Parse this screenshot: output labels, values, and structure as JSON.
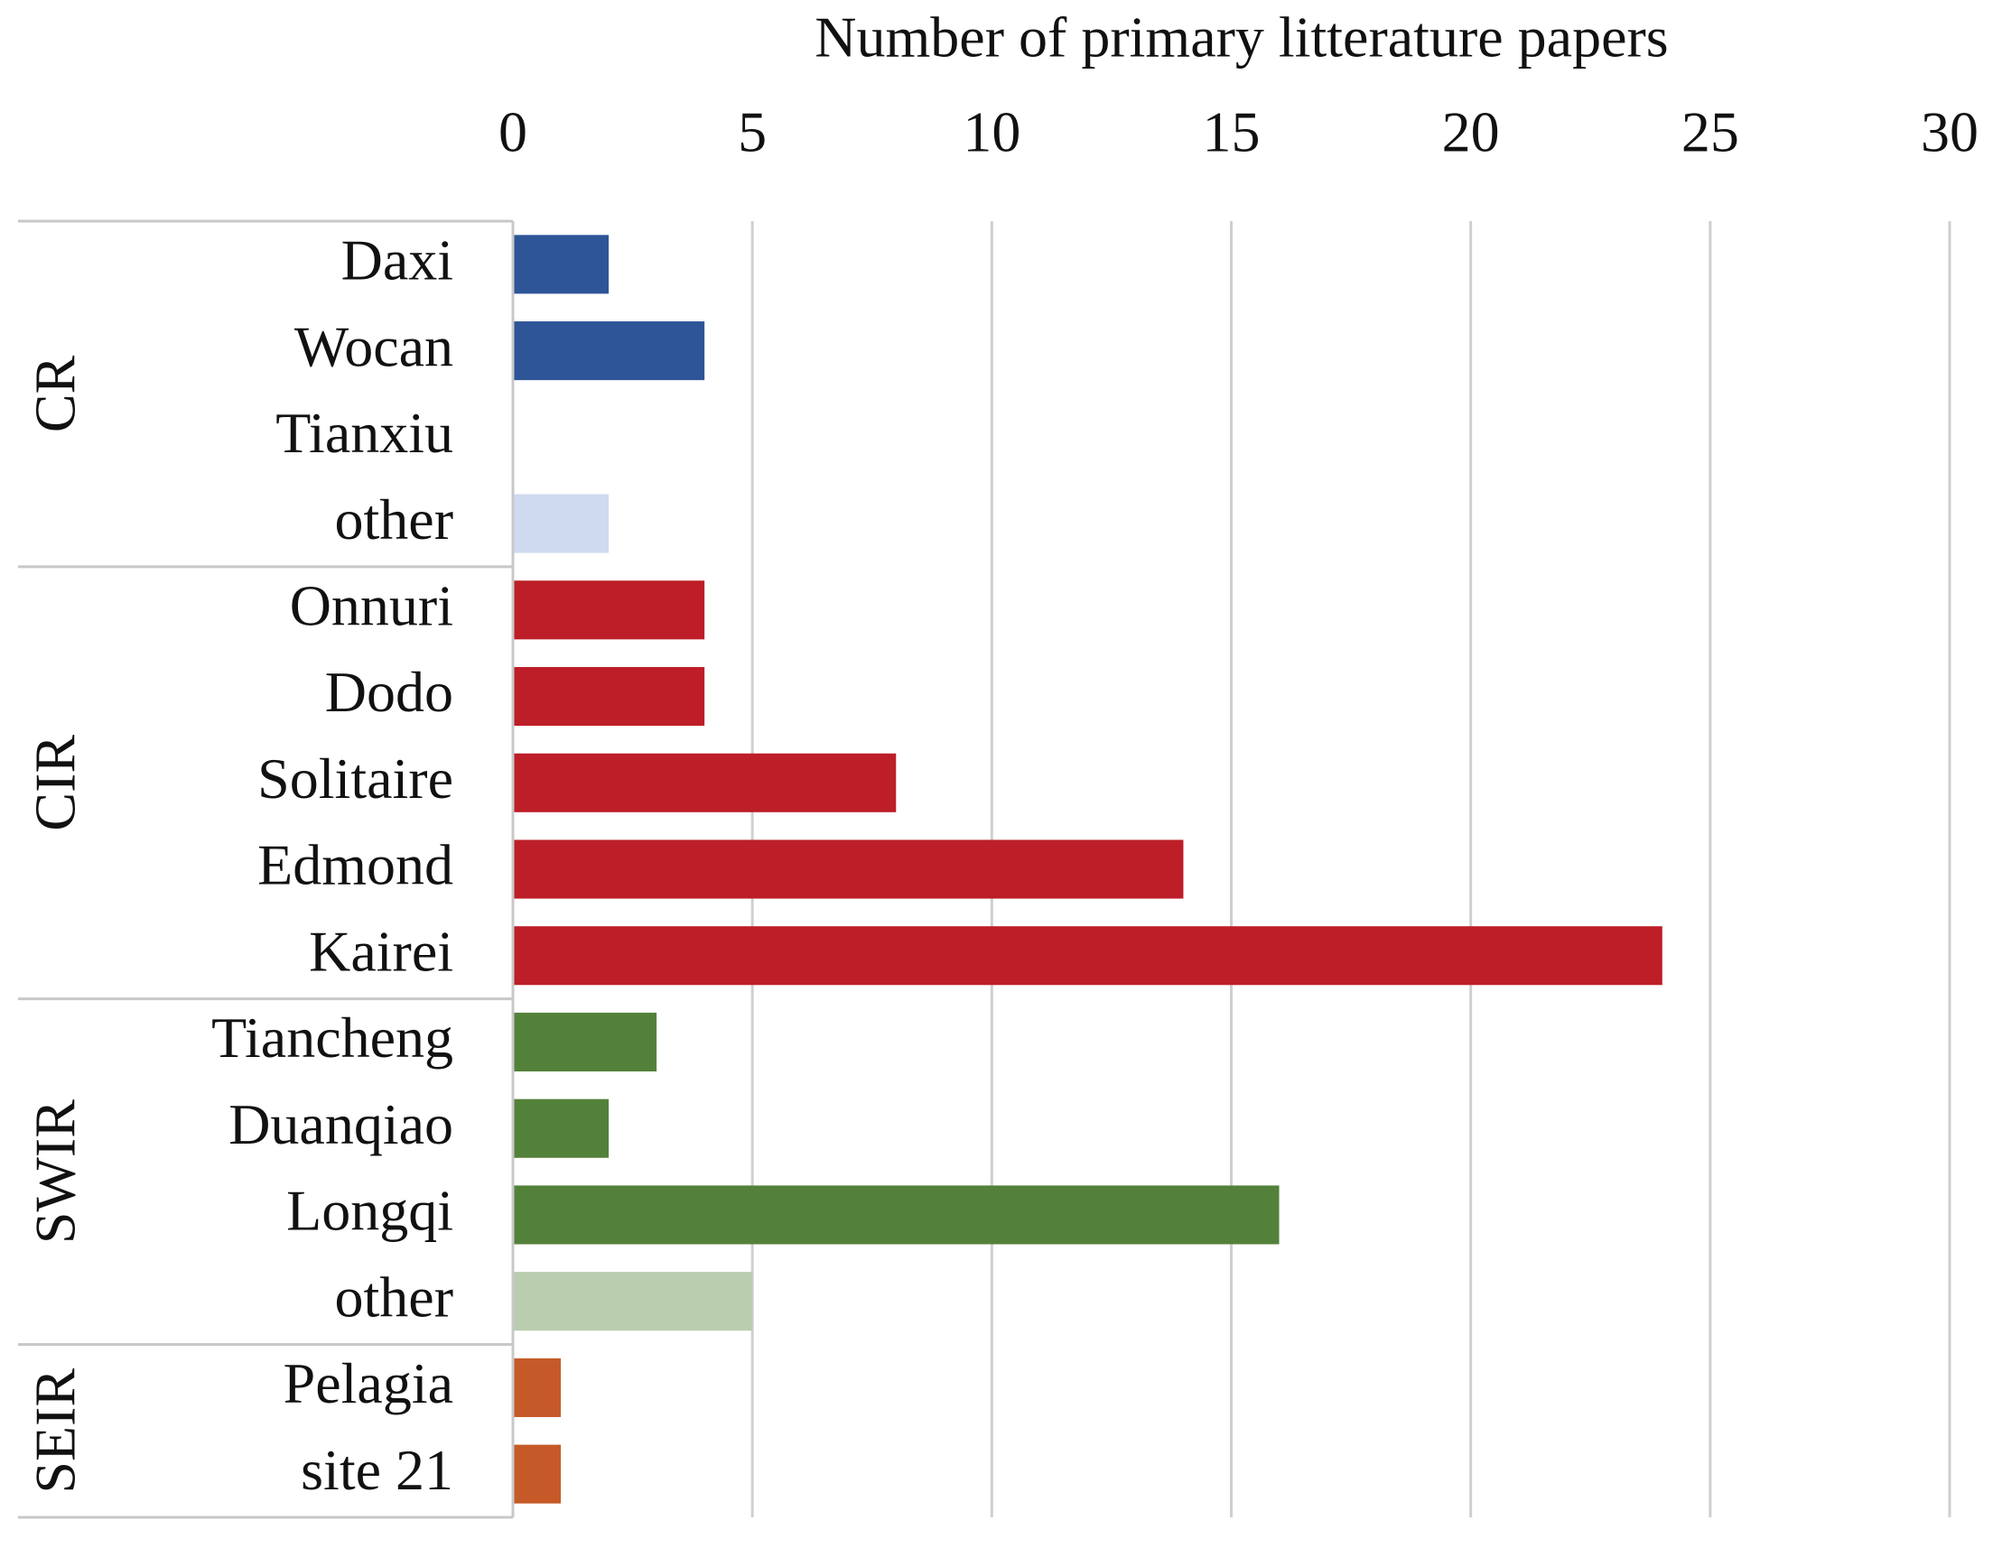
{
  "chart_data": {
    "type": "bar",
    "orientation": "horizontal",
    "title": "Number of primary litterature papers",
    "categories": [
      "Daxi",
      "Wocan",
      "Tianxiu",
      "other",
      "Onnuri",
      "Dodo",
      "Solitaire",
      "Edmond",
      "Kairei",
      "Tiancheng",
      "Duanqiao",
      "Longqi",
      "other",
      "Pelagia",
      "site 21"
    ],
    "values": [
      2,
      4,
      0,
      2,
      4,
      4,
      8,
      14,
      24,
      3,
      2,
      16,
      5,
      1,
      1
    ],
    "colors": [
      "#2e5597",
      "#2e5597",
      "#2e5597",
      "#cfdaf0",
      "#bd1e28",
      "#bd1e28",
      "#bd1e28",
      "#bd1e28",
      "#bd1e28",
      "#53813a",
      "#53813a",
      "#53813a",
      "#bacdaf",
      "#c55a28",
      "#c55a28"
    ],
    "groups": [
      {
        "label": "CR",
        "count": 4
      },
      {
        "label": "CIR",
        "count": 5
      },
      {
        "label": "SWIR",
        "count": 4
      },
      {
        "label": "SEIR",
        "count": 2
      }
    ],
    "xlim": [
      0,
      30
    ],
    "xticks": [
      0,
      5,
      10,
      15,
      20,
      25,
      30
    ],
    "grid": true
  }
}
